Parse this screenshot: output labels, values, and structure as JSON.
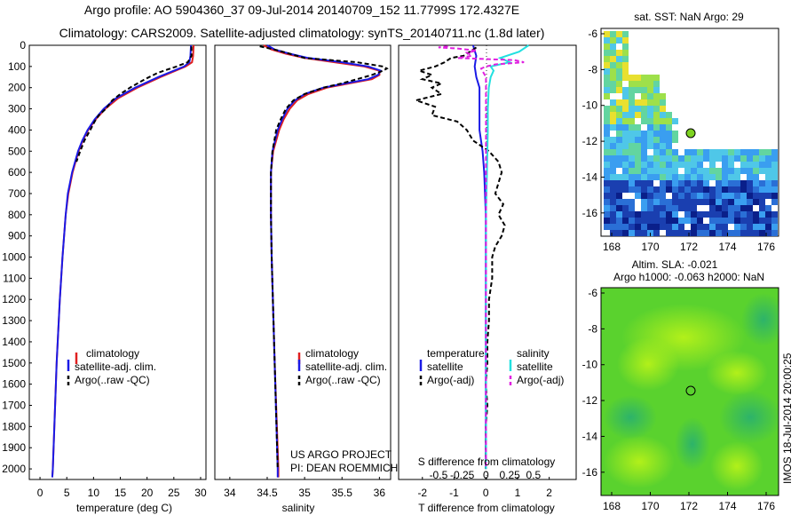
{
  "header": {
    "line1": "Argo profile: AO 5904360_37 09-Jul-2014 20140709_152 11.7799S 172.4327E",
    "line2": "Climatology: CARS2009. Satellite-adjusted climatology: synTS_20140711.nc (1.8d later)"
  },
  "colors": {
    "climatology": "#e02020",
    "satellite": "#1a1ae6",
    "argo": "#000000",
    "sal_satellite": "#22e0e0",
    "sal_argo": "#e020e0"
  },
  "depth_ticks": [
    "0",
    "100",
    "200",
    "300",
    "400",
    "500",
    "600",
    "700",
    "800",
    "900",
    "1000",
    "1100",
    "1200",
    "1300",
    "1400",
    "1500",
    "1600",
    "1700",
    "1800",
    "1900",
    "2000"
  ],
  "panels": {
    "temperature": {
      "xlabel": "temperature (deg C)",
      "ticks": [
        "0",
        "5",
        "10",
        "15",
        "20",
        "25",
        "30"
      ],
      "legend": [
        "climatology",
        "satellite-adj. clim.",
        "Argo(..raw -QC)"
      ]
    },
    "salinity": {
      "xlabel": "salinity",
      "ticks": [
        "34",
        "34.5",
        "35",
        "35.5",
        "36"
      ],
      "legend": [
        "climatology",
        "satellite-adj. clim.",
        "Argo(..raw -QC)"
      ],
      "credit1": "US ARGO PROJECT",
      "credit2": "PI: DEAN ROEMMICH"
    },
    "difference": {
      "xlabel": "T difference from climatology",
      "s_label": "S difference from climatology",
      "t_ticks": [
        "-2",
        "-1",
        "0",
        "1",
        "2"
      ],
      "s_ticks": [
        "-0.5",
        "-0.25",
        "0",
        "0.25",
        "0.5"
      ],
      "legend_head_t": "temperature",
      "legend_head_s": "salinity",
      "legend": [
        "satellite",
        "Argo(-adj)",
        "satellite",
        "Argo(-adj)"
      ]
    }
  },
  "maps": {
    "sst_title": "sat. SST: NaN Argo: 29",
    "sla_title1": "Altim. SLA: -0.021",
    "sla_title2": "Argo h1000: -0.063 h2000: NaN",
    "lat_ticks": [
      "-6",
      "-8",
      "-10",
      "-12",
      "-14",
      "-16"
    ],
    "lon_ticks": [
      "168",
      "170",
      "172",
      "174",
      "176"
    ]
  },
  "imos": "IMOS 18-Jul-2014 20:00:25",
  "chart_data": [
    {
      "type": "line",
      "title": "",
      "xlabel": "temperature (deg C)",
      "ylabel": "",
      "xlim": [
        -2,
        31
      ],
      "ylim": [
        2050,
        0
      ],
      "series": [
        {
          "name": "climatology",
          "depth": [
            0,
            50,
            80,
            100,
            150,
            200,
            250,
            300,
            350,
            400,
            450,
            500,
            600,
            700,
            800,
            1000,
            1200,
            1500,
            2000,
            2040
          ],
          "values": [
            28.7,
            28.6,
            28.4,
            27.2,
            22.5,
            18.2,
            14.6,
            12.2,
            10.4,
            9.0,
            8.0,
            7.2,
            6.1,
            5.3,
            4.8,
            4.2,
            3.7,
            3.1,
            2.4,
            2.3
          ]
        },
        {
          "name": "satellite-adj. clim.",
          "depth": [
            0,
            50,
            80,
            100,
            150,
            200,
            250,
            300,
            350,
            400,
            450,
            500,
            600,
            700,
            800,
            1000,
            1200,
            1500,
            2000,
            2040
          ],
          "values": [
            28.2,
            28.1,
            27.9,
            26.9,
            22.1,
            17.8,
            14.2,
            11.9,
            10.2,
            8.9,
            7.9,
            7.1,
            6.0,
            5.2,
            4.8,
            4.2,
            3.7,
            3.1,
            2.4,
            2.3
          ]
        },
        {
          "name": "Argo(..raw -QC)",
          "depth": [
            5,
            50,
            80,
            100,
            130,
            160,
            200,
            230,
            260,
            300,
            330,
            360,
            400,
            450,
            500,
            550
          ],
          "values": [
            28.3,
            28.3,
            27.6,
            25.5,
            22.0,
            19.6,
            16.8,
            15.0,
            13.5,
            12.3,
            11.0,
            10.2,
            9.4,
            8.3,
            7.5,
            6.8
          ]
        }
      ]
    },
    {
      "type": "line",
      "title": "",
      "xlabel": "salinity",
      "ylabel": "",
      "xlim": [
        33.8,
        36.15
      ],
      "ylim": [
        2050,
        0
      ],
      "series": [
        {
          "name": "climatology",
          "depth": [
            0,
            20,
            40,
            60,
            80,
            100,
            120,
            140,
            160,
            180,
            200,
            230,
            260,
            300,
            350,
            400,
            500,
            600,
            800,
            1000,
            1500,
            2000,
            2040
          ],
          "values": [
            34.45,
            34.56,
            34.75,
            35.0,
            35.4,
            35.8,
            36.0,
            36.0,
            35.9,
            35.6,
            35.3,
            35.05,
            34.9,
            34.8,
            34.72,
            34.66,
            34.58,
            34.55,
            34.55,
            34.56,
            34.6,
            34.65,
            34.65
          ]
        },
        {
          "name": "satellite-adj. clim.",
          "depth": [
            0,
            20,
            40,
            60,
            80,
            100,
            120,
            140,
            160,
            180,
            200,
            230,
            260,
            300,
            350,
            400,
            500,
            600,
            800,
            1000,
            1500,
            2000,
            2040
          ],
          "values": [
            34.5,
            34.6,
            34.8,
            35.05,
            35.5,
            35.85,
            36.02,
            35.98,
            35.85,
            35.55,
            35.25,
            35.0,
            34.87,
            34.77,
            34.7,
            34.64,
            34.57,
            34.55,
            34.55,
            34.56,
            34.6,
            34.64,
            34.64
          ]
        },
        {
          "name": "Argo(..raw -QC)",
          "depth": [
            5,
            20,
            40,
            60,
            80,
            100,
            110,
            120,
            140,
            160,
            180,
            200,
            230,
            260,
            300,
            350,
            400,
            500,
            600,
            800,
            1000,
            1500,
            2000
          ],
          "values": [
            34.4,
            34.6,
            34.8,
            35.0,
            35.7,
            36.05,
            36.1,
            36.05,
            35.9,
            35.7,
            35.5,
            35.25,
            35.0,
            34.85,
            34.75,
            34.68,
            34.62,
            34.57,
            34.55,
            34.55,
            34.56,
            34.6,
            34.64
          ]
        }
      ]
    },
    {
      "type": "line",
      "title": "",
      "xlabel": "T difference from climatology",
      "ylabel": "",
      "xlim": [
        -2.75,
        2.85
      ],
      "ylim": [
        2050,
        0
      ],
      "series": [
        {
          "name": "temperature satellite",
          "depth": [
            0,
            50,
            100,
            150,
            200,
            300,
            400,
            500,
            600,
            800,
            1000,
            1500,
            2000
          ],
          "values": [
            -0.4,
            -0.3,
            -0.35,
            -0.3,
            -0.2,
            -0.2,
            -0.2,
            -0.1,
            -0.05,
            0,
            0,
            0,
            0
          ]
        },
        {
          "name": "temperature Argo(-adj)",
          "depth": [
            10,
            30,
            50,
            60,
            80,
            100,
            120,
            140,
            160,
            180,
            200,
            230,
            260,
            290,
            330,
            360,
            400,
            450,
            500,
            550,
            600,
            650,
            700,
            750,
            800,
            850,
            900,
            950,
            1000,
            1100,
            1200,
            1300,
            1400,
            1500,
            1600,
            1700,
            1800,
            1900,
            2000
          ],
          "values": [
            -0.3,
            -0.5,
            -0.7,
            -1.1,
            -1.3,
            -1.6,
            -2.1,
            -1.7,
            -2.0,
            -1.4,
            -1.7,
            -1.4,
            -2.2,
            -1.6,
            -1.7,
            -0.9,
            -0.6,
            -0.4,
            0.1,
            0.4,
            0.5,
            0.4,
            0.3,
            0.55,
            0.4,
            0.6,
            0.5,
            0.3,
            0.2,
            0.2,
            0.1,
            0.1,
            0.05,
            0.05,
            0,
            0.05,
            0,
            0,
            0
          ]
        }
      ]
    },
    {
      "type": "line",
      "title": "",
      "xlabel": "S difference from climatology",
      "ylabel": "",
      "xlim": [
        -0.92,
        0.95
      ],
      "ylim": [
        2050,
        0
      ],
      "series": [
        {
          "name": "salinity satellite",
          "depth": [
            0,
            30,
            60,
            80,
            100,
            120,
            150,
            200,
            300,
            400,
            600,
            800,
            1000,
            1500,
            2000
          ],
          "values": [
            0.45,
            0.35,
            0.15,
            0.25,
            0.05,
            0.08,
            0.05,
            0.03,
            0.02,
            0.02,
            0.01,
            0.0,
            0.0,
            0.0,
            0.0
          ]
        },
        {
          "name": "salinity Argo(-adj)",
          "depth": [
            5,
            10,
            15,
            25,
            35,
            50,
            60,
            70,
            80,
            90,
            100,
            110,
            150,
            200,
            300,
            500,
            800,
            1200,
            1600,
            2000
          ],
          "values": [
            -0.4,
            -0.5,
            -0.3,
            -0.1,
            -0.2,
            -0.15,
            -0.3,
            0.3,
            0.4,
            0.1,
            0.0,
            -0.05,
            0.0,
            0.0,
            0.0,
            0.0,
            0.0,
            0.0,
            0.0,
            0.0
          ]
        }
      ]
    }
  ]
}
